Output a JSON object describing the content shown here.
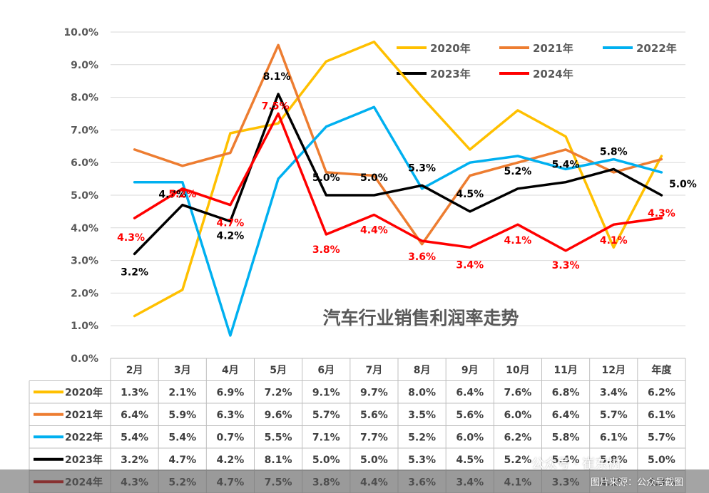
{
  "chart_data": {
    "type": "line",
    "title": "汽车行业销售利润率走势",
    "categories": [
      "2月",
      "3月",
      "4月",
      "5月",
      "6月",
      "7月",
      "8月",
      "9月",
      "10月",
      "11月",
      "12月",
      "年度"
    ],
    "ylim": [
      0,
      10
    ],
    "yticks": [
      "0.0%",
      "1.0%",
      "2.0%",
      "3.0%",
      "4.0%",
      "5.0%",
      "6.0%",
      "7.0%",
      "8.0%",
      "9.0%",
      "10.0%"
    ],
    "grid": true,
    "legend_position": "top-right",
    "series": [
      {
        "name": "2020年",
        "color": "#FFC000",
        "values": [
          1.3,
          2.1,
          6.9,
          7.2,
          9.1,
          9.7,
          8.0,
          6.4,
          7.6,
          6.8,
          3.4,
          6.2
        ],
        "table": [
          "1.3%",
          "2.1%",
          "6.9%",
          "7.2%",
          "9.1%",
          "9.7%",
          "8.0%",
          "6.4%",
          "7.6%",
          "6.8%",
          "3.4%",
          "6.2%"
        ]
      },
      {
        "name": "2021年",
        "color": "#ED7D31",
        "values": [
          6.4,
          5.9,
          6.3,
          9.6,
          5.7,
          5.6,
          3.5,
          5.6,
          6.0,
          6.4,
          5.7,
          6.1
        ],
        "table": [
          "6.4%",
          "5.9%",
          "6.3%",
          "9.6%",
          "5.7%",
          "5.6%",
          "3.5%",
          "5.6%",
          "6.0%",
          "6.4%",
          "5.7%",
          "6.1%"
        ]
      },
      {
        "name": "2022年",
        "color": "#00B0F0",
        "values": [
          5.4,
          5.4,
          0.7,
          5.5,
          7.1,
          7.7,
          5.2,
          6.0,
          6.2,
          5.8,
          6.1,
          5.7
        ],
        "table": [
          "5.4%",
          "5.4%",
          "0.7%",
          "5.5%",
          "7.1%",
          "7.7%",
          "5.2%",
          "6.0%",
          "6.2%",
          "5.8%",
          "6.1%",
          "5.7%"
        ]
      },
      {
        "name": "2023年",
        "color": "#000000",
        "values": [
          3.2,
          4.7,
          4.2,
          8.1,
          5.0,
          5.0,
          5.3,
          4.5,
          5.2,
          5.4,
          5.8,
          5.0
        ],
        "table": [
          "3.2%",
          "4.7%",
          "4.2%",
          "8.1%",
          "5.0%",
          "5.0%",
          "5.3%",
          "4.5%",
          "5.2%",
          "5.4%",
          "5.8%",
          "5.0%"
        ],
        "labels": [
          "3.2%",
          "4.7%",
          "4.2%",
          "8.1%",
          "5.0%",
          "5.0%",
          "5.3%",
          "4.5%",
          "5.2%",
          "5.4%",
          "5.8%",
          "5.0%"
        ]
      },
      {
        "name": "2024年",
        "color": "#FF0000",
        "values": [
          4.3,
          5.2,
          4.7,
          7.5,
          3.8,
          4.4,
          3.6,
          3.4,
          4.1,
          3.3,
          4.1,
          4.3
        ],
        "table": [
          "4.3%",
          "5.2%",
          "4.7%",
          "7.5%",
          "3.8%",
          "4.4%",
          "3.6%",
          "3.4%",
          "4.1%",
          "3.3%",
          "4.1%",
          "4.3%"
        ],
        "labels": [
          "4.3%",
          "5.2%",
          "4.7%",
          "7.5%",
          "3.8%",
          "4.4%",
          "3.6%",
          "3.4%",
          "4.1%",
          "3.3%",
          "4.1%",
          "4.3%"
        ]
      }
    ]
  },
  "watermark": {
    "account": "公众号 · 崔东树",
    "source": "图片来源：公众号截图"
  }
}
